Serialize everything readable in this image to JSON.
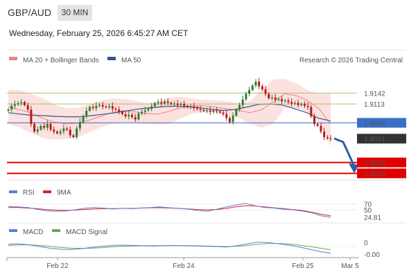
{
  "header": {
    "pair": "GBP/AUD",
    "timeframe": "30 MIN",
    "datetime": "Wednesday, February 25, 2026 6:45:27 AM CET"
  },
  "credit": "Research © 2026 Trading Central",
  "colors": {
    "bb": "#f08080",
    "ma50": "#2a5a8c",
    "bull": "#2e7d32",
    "bear": "#b71c1c",
    "res": "#a9c26a",
    "pivot": "#3a6fc6",
    "sup": "#e00000",
    "rsi": "#5b7fd6",
    "rsi_ma": "#dd2222",
    "macd": "#5b7fd6",
    "macd_sig": "#6aa84f"
  },
  "chart_data": [
    {
      "type": "candlestick",
      "legend": [
        "MA 20 + Bollinger Bands",
        "MA 50"
      ],
      "x_ticks": [
        "Feb 22",
        "Feb 24",
        "Feb 25",
        "Mar 5"
      ],
      "ylim": [
        1.8915,
        1.9205
      ],
      "levels": [
        {
          "value": "1.9142",
          "kind": "resistance"
        },
        {
          "value": "1.9113",
          "kind": "resistance"
        },
        {
          "value": "1.9063",
          "kind": "pivot"
        },
        {
          "value": "1.9021",
          "kind": "last"
        },
        {
          "value": "1.8958",
          "kind": "support"
        },
        {
          "value": "1.8929",
          "kind": "support"
        }
      ],
      "close": [
        1.9098,
        1.9108,
        1.9112,
        1.9115,
        1.9118,
        1.911,
        1.9098,
        1.906,
        1.904,
        1.9045,
        1.9055,
        1.905,
        1.906,
        1.9045,
        1.904,
        1.9035,
        1.904,
        1.9048,
        1.9045,
        1.903,
        1.9025,
        1.9048,
        1.9065,
        1.908,
        1.9095,
        1.9105,
        1.9102,
        1.9108,
        1.911,
        1.9106,
        1.9104,
        1.9107,
        1.91,
        1.9098,
        1.9092,
        1.9086,
        1.908,
        1.9084,
        1.9078,
        1.9072,
        1.9088,
        1.9092,
        1.9096,
        1.91,
        1.9107,
        1.9115,
        1.9118,
        1.9114,
        1.912,
        1.9116,
        1.9112,
        1.9114,
        1.911,
        1.9113,
        1.9108,
        1.9104,
        1.9106,
        1.9102,
        1.91,
        1.9097,
        1.9094,
        1.9096,
        1.9092,
        1.9096,
        1.9094,
        1.909,
        1.9086,
        1.9076,
        1.9065,
        1.9082,
        1.9098,
        1.911,
        1.9125,
        1.914,
        1.915,
        1.9162,
        1.9172,
        1.916,
        1.9152,
        1.914,
        1.9128,
        1.913,
        1.9124,
        1.9126,
        1.912,
        1.9122,
        1.9118,
        1.9114,
        1.9116,
        1.911,
        1.9113,
        1.9108,
        1.9105,
        1.908,
        1.906,
        1.9055,
        1.904,
        1.9025,
        1.9022,
        1.9021
      ],
      "ma50": [
        1.909,
        1.9086,
        1.9083,
        1.9082,
        1.908,
        1.9079,
        1.9079,
        1.9082,
        1.9086,
        1.909,
        1.9095,
        1.91,
        1.9103,
        1.9106,
        1.9107,
        1.9106,
        1.9103,
        1.9099,
        1.9096,
        1.9098,
        1.9105,
        1.9112,
        1.9113,
        1.911,
        1.91,
        1.909,
        1.9075,
        1.9068
      ],
      "bb_mid": [
        1.9105,
        1.9098,
        1.9088,
        1.9075,
        1.9065,
        1.906,
        1.9062,
        1.907,
        1.908,
        1.909,
        1.9095,
        1.9092,
        1.9088,
        1.9086,
        1.9094,
        1.9103,
        1.9108,
        1.9108,
        1.9105,
        1.91,
        1.9096,
        1.909,
        1.9098,
        1.9118,
        1.914,
        1.9135,
        1.9122,
        1.91,
        1.906
      ],
      "bb_up": [
        1.915,
        1.915,
        1.914,
        1.9128,
        1.9112,
        1.9102,
        1.9102,
        1.9112,
        1.9122,
        1.9128,
        1.9126,
        1.9122,
        1.9115,
        1.9118,
        1.913,
        1.9132,
        1.9128,
        1.9124,
        1.9122,
        1.912,
        1.9115,
        1.912,
        1.915,
        1.9178,
        1.918,
        1.9168,
        1.915,
        1.914,
        1.914
      ],
      "bb_lo": [
        1.906,
        1.905,
        1.9036,
        1.9022,
        1.9018,
        1.902,
        1.9025,
        1.9038,
        1.905,
        1.906,
        1.9065,
        1.9062,
        1.906,
        1.9058,
        1.906,
        1.9075,
        1.9088,
        1.9092,
        1.909,
        1.9085,
        1.9077,
        1.906,
        1.905,
        1.906,
        1.9102,
        1.9102,
        1.9092,
        1.9065,
        1.9
      ]
    },
    {
      "type": "line",
      "legend": [
        "RSI",
        "9MA"
      ],
      "ticks": [
        "70",
        "50"
      ],
      "last_value": "24.81",
      "ylim": [
        15,
        85
      ],
      "rsi": [
        62,
        60,
        58,
        52,
        47,
        45,
        46,
        50,
        55,
        58,
        56,
        53,
        55,
        54,
        56,
        58,
        60,
        57,
        55,
        52,
        48,
        45,
        52,
        60,
        66,
        72,
        64,
        58,
        56,
        52,
        50,
        46,
        40,
        30,
        25
      ],
      "rsi_ma": [
        58,
        58,
        56,
        54,
        51,
        49,
        48,
        49,
        51,
        53,
        54,
        54,
        55,
        55,
        56,
        57,
        57,
        56,
        55,
        53,
        51,
        50,
        51,
        55,
        60,
        64,
        63,
        60,
        57,
        54,
        51,
        48,
        42,
        35,
        30
      ]
    },
    {
      "type": "line",
      "legend": [
        "MACD",
        "MACD Signal"
      ],
      "ticks": [
        "0"
      ],
      "last_value": "-0.00",
      "ylim": [
        -0.0035,
        0.0035
      ],
      "macd": [
        0.0008,
        0.001,
        0.0006,
        0.0,
        -0.0006,
        -0.001,
        -0.0011,
        -0.0008,
        -0.0003,
        0.0001,
        0.0004,
        0.0005,
        0.0004,
        0.0003,
        0.0002,
        0.0003,
        0.0004,
        0.0003,
        0.0002,
        0.0001,
        0.0,
        -0.0002,
        0.0003,
        0.001,
        0.0016,
        0.0014,
        0.001,
        0.0005,
        -0.0002,
        -0.001,
        -0.0018,
        -0.0024
      ],
      "signal": [
        0.0004,
        0.0006,
        0.0006,
        0.0004,
        0.0001,
        -0.0003,
        -0.0006,
        -0.0007,
        -0.0006,
        -0.0004,
        -0.0001,
        0.0001,
        0.0002,
        0.0003,
        0.0003,
        0.0003,
        0.0003,
        0.0003,
        0.0003,
        0.0002,
        0.0001,
        0.0,
        0.0001,
        0.0004,
        0.0008,
        0.0011,
        0.0011,
        0.0009,
        0.0005,
        0.0,
        -0.0006,
        -0.0012
      ]
    }
  ]
}
